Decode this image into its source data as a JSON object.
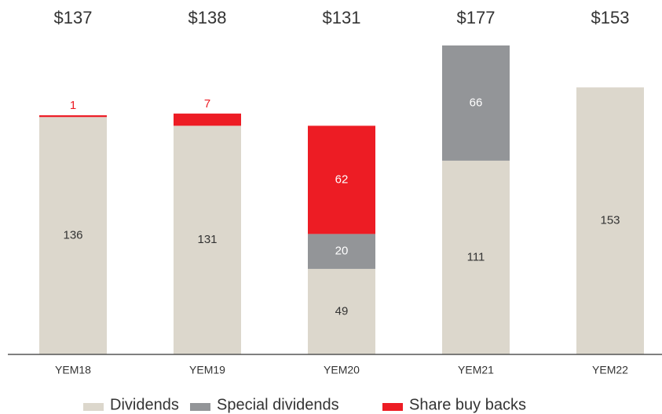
{
  "chart_data": {
    "type": "stacked_bar",
    "categories": [
      "YEM18",
      "YEM19",
      "YEM20",
      "YEM21",
      "YEM22"
    ],
    "total_labels": [
      "$137",
      "$138",
      "$131",
      "$177",
      "$153"
    ],
    "series": [
      {
        "name": "Dividends",
        "color": "#dcd7cc",
        "label_color": "#333333",
        "values": [
          136,
          131,
          49,
          111,
          153
        ]
      },
      {
        "name": "Special dividends",
        "color": "#939598",
        "label_color": "#ffffff",
        "values": [
          null,
          null,
          20,
          66,
          null
        ]
      },
      {
        "name": "Share buy backs",
        "color": "#ed1c24",
        "label_color": "#ffffff",
        "values": [
          1,
          7,
          62,
          null,
          null
        ]
      }
    ],
    "legend": "bottom"
  }
}
